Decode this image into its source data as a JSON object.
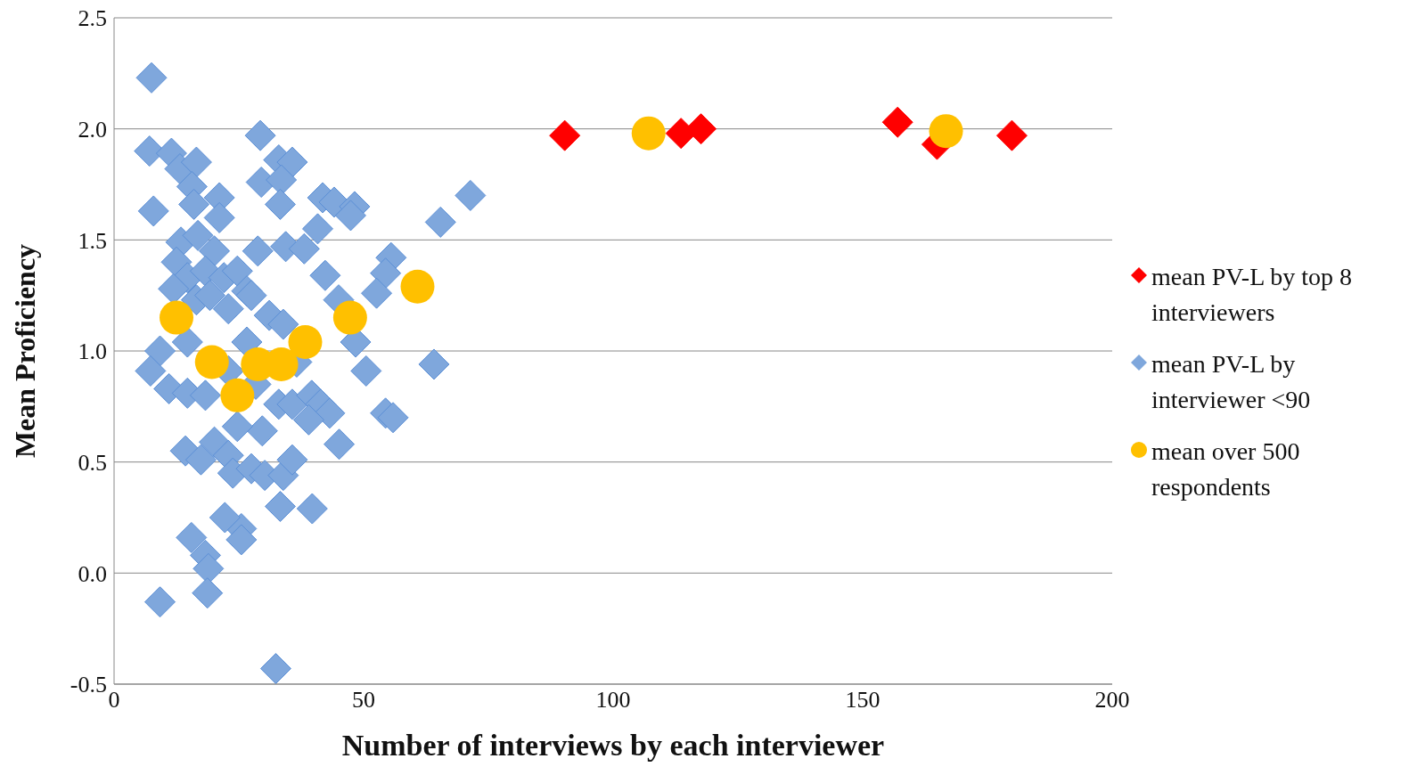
{
  "chart_data": {
    "type": "scatter",
    "xlabel": "Number of interviews by each interviewer",
    "ylabel": "Mean Proficiency",
    "xlim": [
      0,
      200
    ],
    "xticks": [
      0,
      50,
      100,
      150,
      200
    ],
    "ylim": [
      -0.5,
      2.5
    ],
    "yticks": [
      {
        "value": -0.5,
        "label": "-0.5"
      },
      {
        "value": 0,
        "label": "0.0"
      },
      {
        "value": 0.5,
        "label": "0.5"
      },
      {
        "value": 1,
        "label": "1.0"
      },
      {
        "value": 1.5,
        "label": "1.5"
      },
      {
        "value": 2,
        "label": "2.0"
      },
      {
        "value": 2.5,
        "label": "2.5"
      }
    ],
    "grid": "y",
    "legend": "right",
    "series": [
      {
        "name": "mean PV-L by top 8 interviewers",
        "color": "#ff0000",
        "marker": "diamond",
        "x": [
          90.3,
          113.6,
          117.6,
          157,
          164.9,
          179.9
        ],
        "values": [
          1.97,
          1.98,
          2.0,
          2.03,
          1.93,
          1.97
        ]
      },
      {
        "name": "mean PV-L by interviewer <90",
        "color": "#7fa7dc",
        "marker": "diamond",
        "x": [
          7.5,
          7.1,
          11.5,
          13.2,
          16.5,
          29.3,
          33,
          35.7,
          29.5,
          33.5,
          7.9,
          15.6,
          16,
          21.1,
          21.1,
          33.3,
          41.8,
          44.1,
          48.2,
          71.4,
          65.4,
          47.4,
          40.8,
          13.4,
          16.8,
          20.1,
          28.8,
          34.4,
          38.1,
          55.5,
          54.4,
          52.6,
          42.3,
          12.5,
          14.7,
          18.3,
          22,
          24.7,
          26.6,
          11.9,
          16.5,
          19.2,
          22.9,
          27.5,
          31.1,
          33.9,
          45,
          48.4,
          50.5,
          64.1,
          9.2,
          7.3,
          11,
          14.7,
          14.7,
          18.3,
          22.9,
          26.6,
          28.4,
          36.6,
          33,
          35.7,
          39.6,
          41.4,
          43.2,
          39,
          54.4,
          55.9,
          45.1,
          14.3,
          17.4,
          20.1,
          22.9,
          23.8,
          27.5,
          30.2,
          33.9,
          35.7,
          29.7,
          24.7,
          15.5,
          18.3,
          18.9,
          25.5,
          25.5,
          22.2,
          33.3,
          39.7,
          9.2,
          18.7,
          32.4
        ],
        "values": [
          2.23,
          1.9,
          1.89,
          1.82,
          1.85,
          1.97,
          1.86,
          1.85,
          1.76,
          1.77,
          1.63,
          1.74,
          1.66,
          1.69,
          1.6,
          1.66,
          1.69,
          1.67,
          1.65,
          1.7,
          1.58,
          1.61,
          1.55,
          1.49,
          1.52,
          1.45,
          1.45,
          1.47,
          1.46,
          1.42,
          1.35,
          1.26,
          1.34,
          1.4,
          1.33,
          1.36,
          1.33,
          1.36,
          1.27,
          1.28,
          1.23,
          1.25,
          1.19,
          1.25,
          1.16,
          1.12,
          1.23,
          1.04,
          0.91,
          0.94,
          1,
          0.91,
          0.83,
          1.04,
          0.81,
          0.8,
          0.91,
          1.04,
          0.85,
          0.95,
          0.76,
          0.76,
          0.8,
          0.76,
          0.72,
          0.69,
          0.72,
          0.7,
          0.58,
          0.55,
          0.51,
          0.59,
          0.53,
          0.45,
          0.47,
          0.44,
          0.44,
          0.51,
          0.64,
          0.66,
          0.16,
          0.08,
          0.02,
          0.2,
          0.15,
          0.25,
          0.3,
          0.29,
          -0.13,
          -0.09,
          -0.43
        ]
      },
      {
        "name": "mean over 500 respondents",
        "color": "#ffc000",
        "marker": "circle",
        "x": [
          12.5,
          19.6,
          24.7,
          28.8,
          33.5,
          38.3,
          47.3,
          60.8,
          107.1,
          166.7
        ],
        "values": [
          1.15,
          0.95,
          0.8,
          0.94,
          0.94,
          1.04,
          1.15,
          1.29,
          1.98,
          1.99
        ]
      }
    ]
  }
}
